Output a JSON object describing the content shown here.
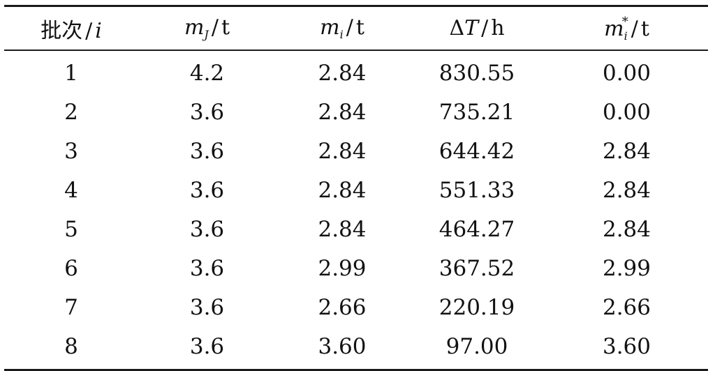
{
  "table": {
    "header": {
      "batch_prefix": "批次",
      "batch_var": "i",
      "mj_symbol": "m",
      "mj_sub": "J",
      "mi_symbol": "m",
      "mi_sub": "i",
      "dt_delta": "Δ",
      "dt_symbol": "T",
      "mistar_symbol": "m",
      "mistar_sub": "i",
      "mistar_sup": "*",
      "slash": "/",
      "unit_t": "t",
      "unit_h": "h"
    },
    "rows": [
      [
        "1",
        "4.2",
        "2.84",
        "830.55",
        "0.00"
      ],
      [
        "2",
        "3.6",
        "2.84",
        "735.21",
        "0.00"
      ],
      [
        "3",
        "3.6",
        "2.84",
        "644.42",
        "2.84"
      ],
      [
        "4",
        "3.6",
        "2.84",
        "551.33",
        "2.84"
      ],
      [
        "5",
        "3.6",
        "2.84",
        "464.27",
        "2.84"
      ],
      [
        "6",
        "3.6",
        "2.99",
        "367.52",
        "2.99"
      ],
      [
        "7",
        "3.6",
        "2.66",
        "220.19",
        "2.66"
      ],
      [
        "8",
        "3.6",
        "3.60",
        "97.00",
        "3.60"
      ]
    ]
  }
}
